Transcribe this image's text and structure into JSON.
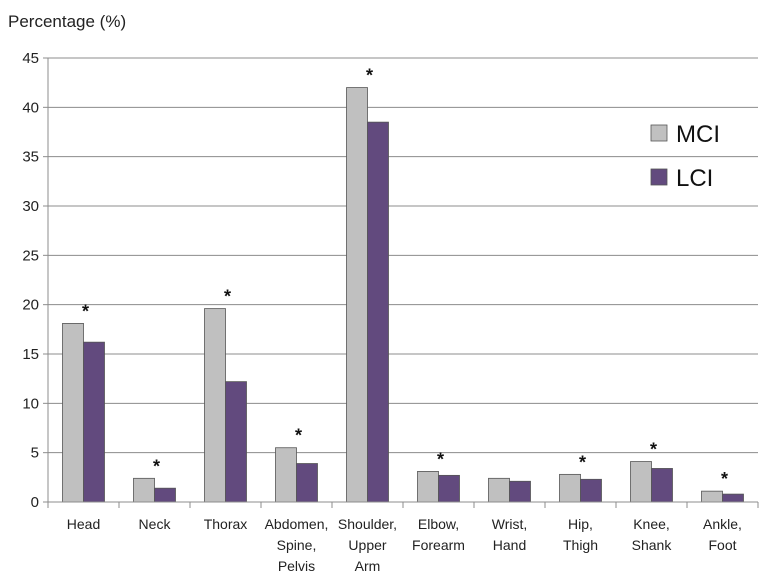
{
  "chart_data": {
    "type": "bar",
    "ylabel": "Percentage (%)",
    "ylim": [
      0,
      45
    ],
    "yticks": [
      0,
      5,
      10,
      15,
      20,
      25,
      30,
      35,
      40,
      45
    ],
    "grid": true,
    "legend_position": "right",
    "categories": [
      [
        "Head"
      ],
      [
        "Neck"
      ],
      [
        "Thorax"
      ],
      [
        "Abdomen,",
        "Spine,",
        "Pelvis"
      ],
      [
        "Shoulder,",
        "Upper",
        "Arm"
      ],
      [
        "Elbow,",
        "Forearm"
      ],
      [
        "Wrist,",
        "Hand"
      ],
      [
        "Hip,",
        "Thigh"
      ],
      [
        "Knee,",
        "Shank"
      ],
      [
        "Ankle,",
        "Foot"
      ]
    ],
    "series": [
      {
        "name": "MCI",
        "color": "#c0c0c0",
        "values": [
          18.1,
          2.4,
          19.6,
          5.5,
          42.0,
          3.1,
          2.4,
          2.8,
          4.1,
          1.1
        ]
      },
      {
        "name": "LCI",
        "color": "#624a7e",
        "values": [
          16.2,
          1.4,
          12.2,
          3.9,
          38.5,
          2.7,
          2.1,
          2.3,
          3.4,
          0.8
        ]
      }
    ],
    "significance_marker": "*",
    "significant": [
      true,
      true,
      true,
      true,
      true,
      true,
      false,
      true,
      true,
      true
    ]
  }
}
